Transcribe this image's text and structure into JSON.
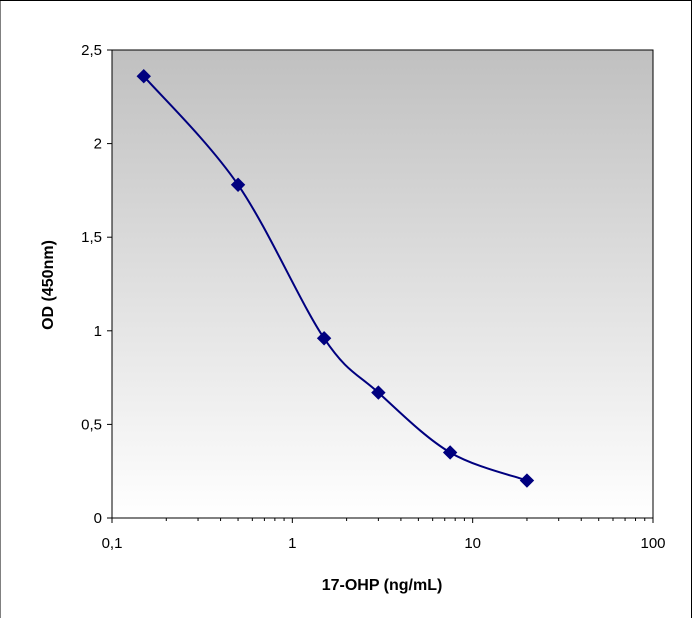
{
  "chart_data": {
    "type": "scatter",
    "title": "",
    "xlabel": "17-OHP (ng/mL)",
    "ylabel": "OD (450nm)",
    "x_scale": "log",
    "xlim": [
      0.1,
      100
    ],
    "ylim": [
      0,
      2.5
    ],
    "x_ticks": [
      {
        "value": 0.1,
        "label": "0,1"
      },
      {
        "value": 1,
        "label": "1"
      },
      {
        "value": 10,
        "label": "10"
      },
      {
        "value": 100,
        "label": "100"
      }
    ],
    "y_ticks": [
      {
        "value": 0,
        "label": "0"
      },
      {
        "value": 0.5,
        "label": "0,5"
      },
      {
        "value": 1,
        "label": "1"
      },
      {
        "value": 1.5,
        "label": "1,5"
      },
      {
        "value": 2,
        "label": "2"
      },
      {
        "value": 2.5,
        "label": "2,5"
      }
    ],
    "grid": false,
    "legend": "none",
    "series": [
      {
        "x": [
          0.15,
          0.5,
          1.5,
          3,
          7.5,
          20
        ],
        "y": [
          2.36,
          1.78,
          0.96,
          0.67,
          0.35,
          0.2
        ],
        "line": "smooth",
        "marker": "diamond"
      }
    ],
    "colors": {
      "series": "#00007f",
      "plot_bg_top": "#c0c0c0",
      "plot_bg_bottom": "#ffffff",
      "axis": "#000000"
    }
  }
}
